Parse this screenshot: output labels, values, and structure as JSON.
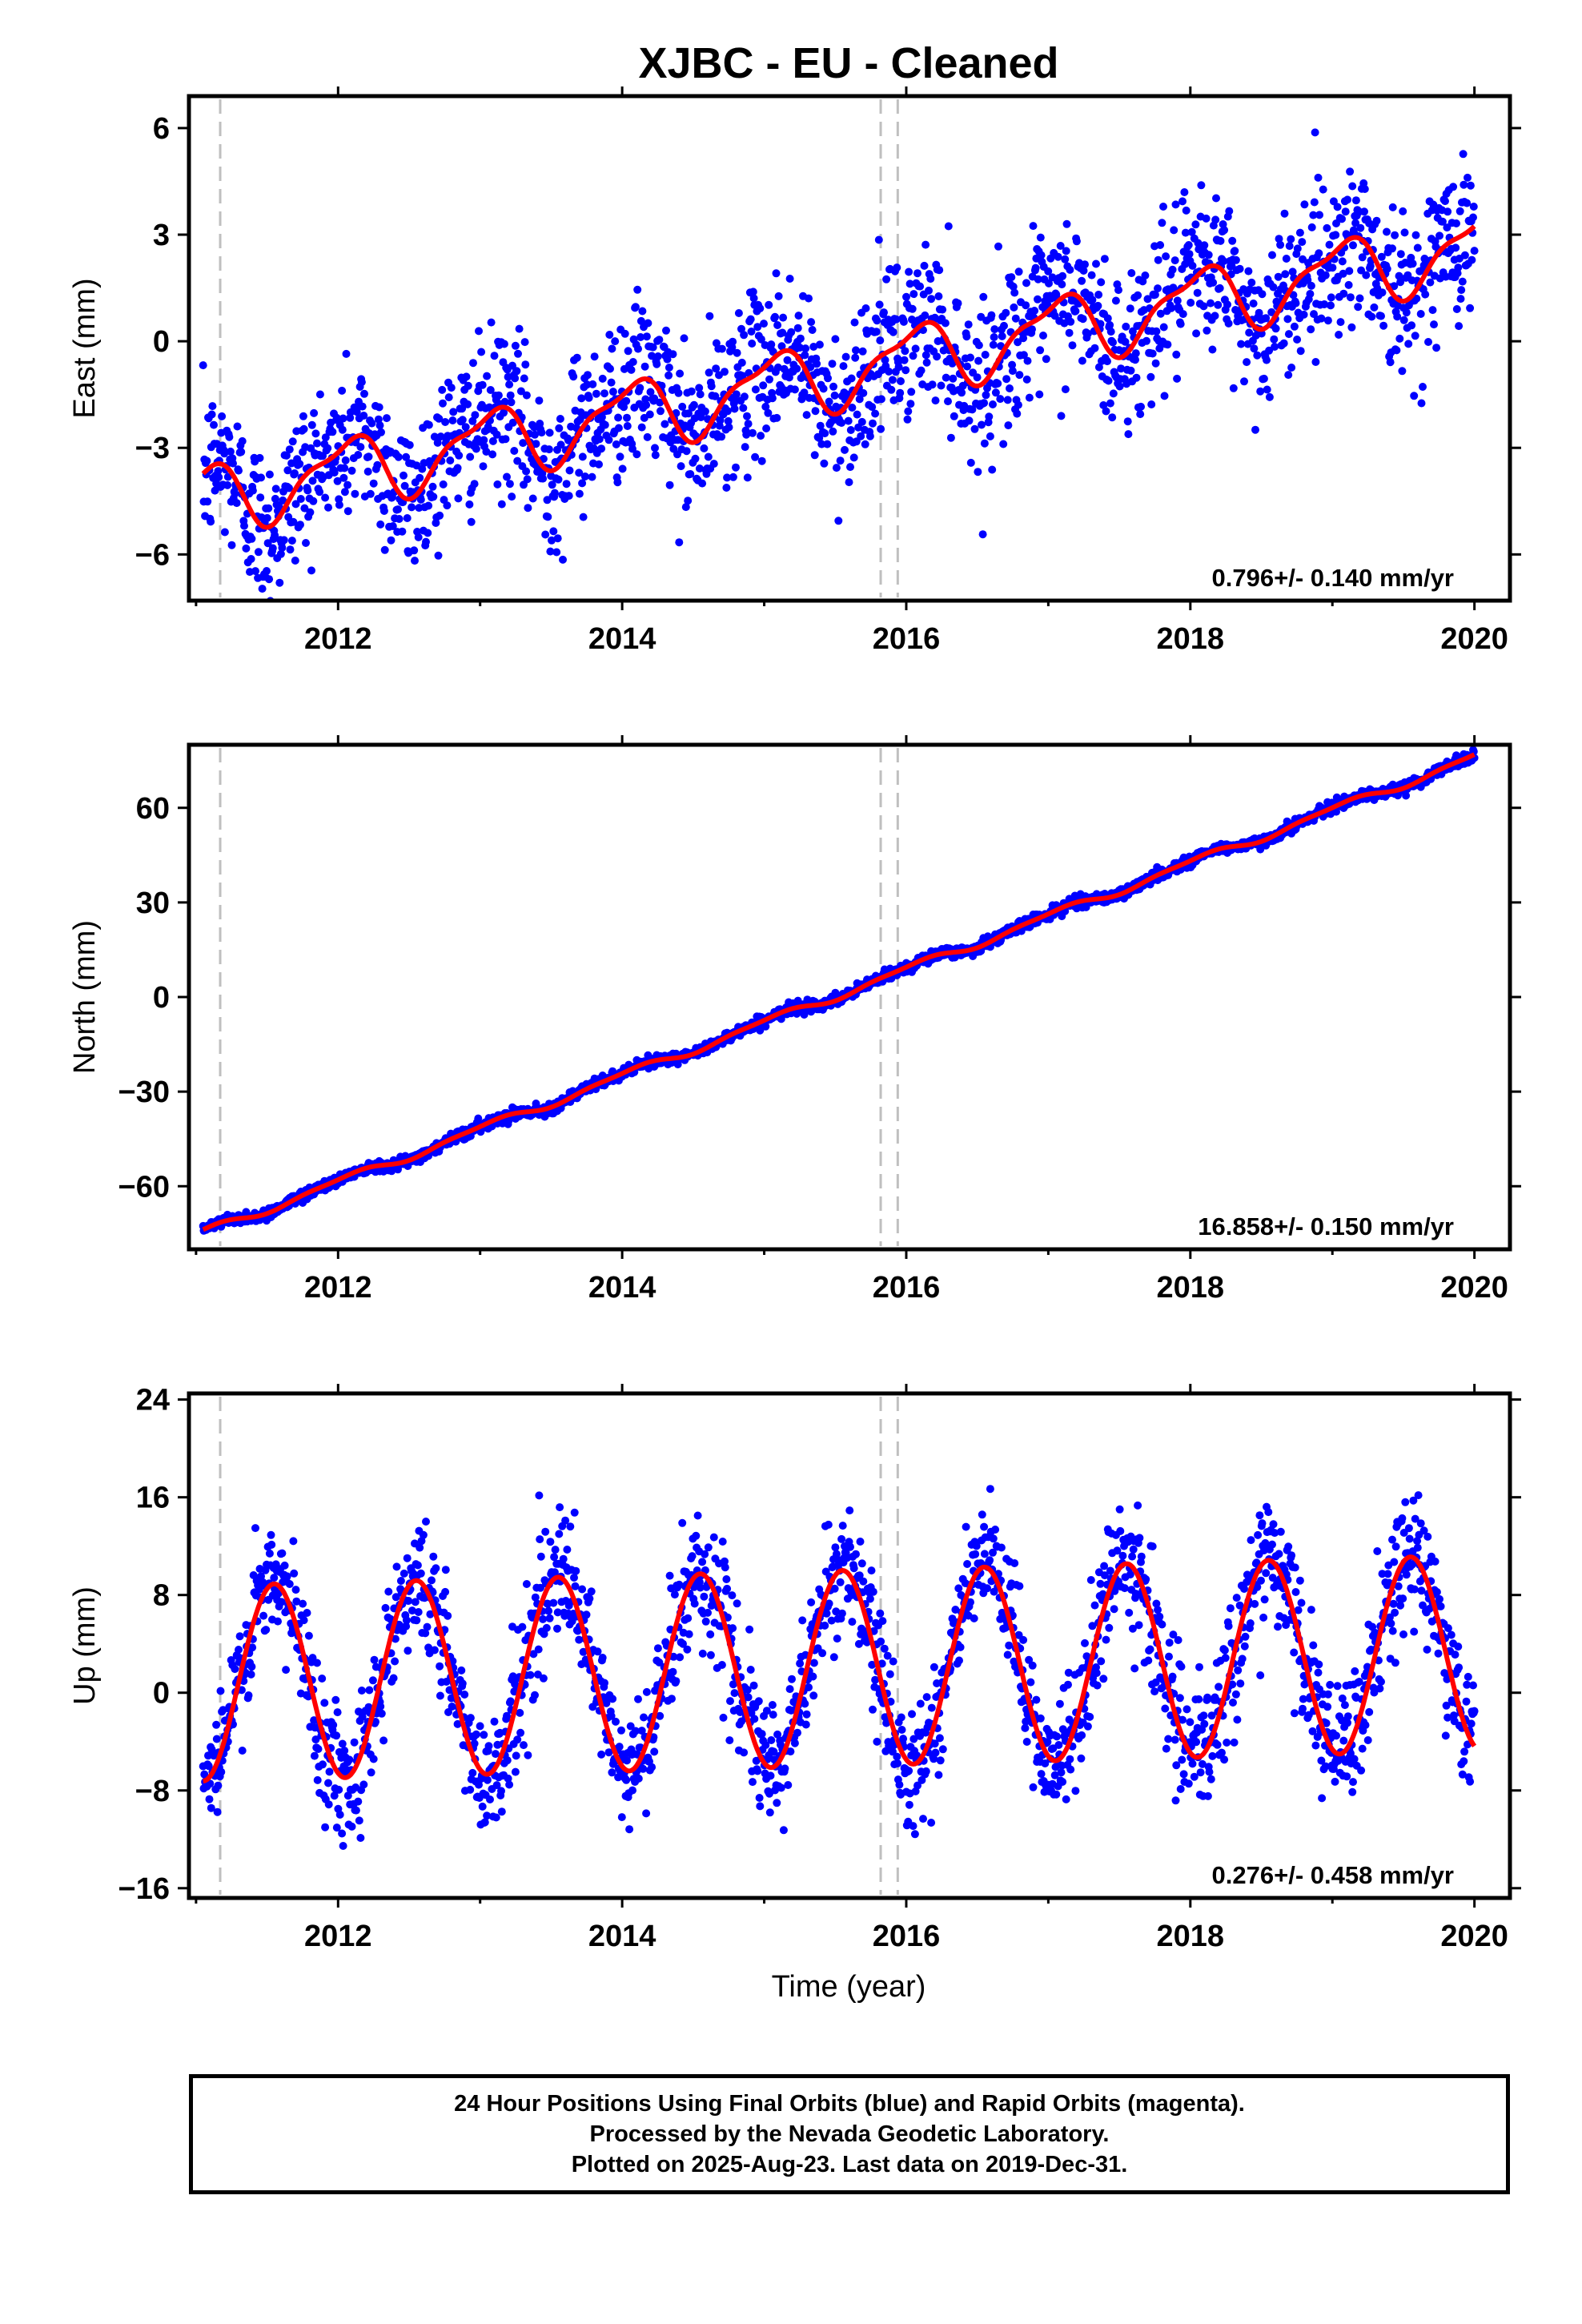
{
  "title": "XJBC  - EU - Cleaned",
  "xlabel": "Time (year)",
  "colors": {
    "points": "#0000ff",
    "fit": "#ff0000",
    "breaks": "#bfbfbf",
    "frame": "#000000"
  },
  "chart_data": [
    {
      "type": "scatter",
      "component": "east",
      "ylabel": "East (mm)",
      "rate_label": "0.796+/- 0.140 mm/yr",
      "xlim": [
        2010.95,
        2020.25
      ],
      "ylim": [
        -7.3,
        6.9
      ],
      "xticks": [
        2012,
        2014,
        2016,
        2018,
        2020
      ],
      "xtick_labels": [
        "2012",
        "2014",
        "2016",
        "2018",
        "2020"
      ],
      "yticks": [
        -6,
        -3,
        0,
        3,
        6
      ],
      "ytick_labels": [
        "−6",
        "−3",
        "0",
        "3",
        "6"
      ],
      "breaks": [
        2011.17,
        2015.82,
        2015.94
      ],
      "data_range": [
        2011.05,
        2020.0
      ],
      "series": [
        {
          "name": "",
          "trend": {
            "t0": 2015.5,
            "offset": -0.9,
            "rate": 0.796
          },
          "annual_amp": 0.9,
          "noise": 1.1
        }
      ]
    },
    {
      "type": "scatter",
      "component": "north",
      "ylabel": "North (mm)",
      "rate_label": "16.858+/- 0.150 mm/yr",
      "xlim": [
        2010.95,
        2020.25
      ],
      "ylim": [
        -80,
        80
      ],
      "xticks": [
        2012,
        2014,
        2016,
        2018,
        2020
      ],
      "xtick_labels": [
        "2012",
        "2014",
        "2016",
        "2018",
        "2020"
      ],
      "yticks": [
        -60,
        -30,
        0,
        30,
        60
      ],
      "ytick_labels": [
        "−60",
        "−30",
        "0",
        "30",
        "60"
      ],
      "breaks": [
        2011.17,
        2015.82,
        2015.94
      ],
      "data_range": [
        2011.05,
        2020.0
      ],
      "series": [
        {
          "name": "",
          "trend": {
            "t0": 2015.5,
            "offset": 0.3,
            "rate": 16.858
          },
          "annual_amp": 1.2,
          "noise": 0.9
        }
      ]
    },
    {
      "type": "scatter",
      "component": "up",
      "ylabel": "Up (mm)",
      "rate_label": "0.276+/- 0.458 mm/yr",
      "xlim": [
        2010.95,
        2020.25
      ],
      "ylim": [
        -16.8,
        24.5
      ],
      "xticks": [
        2012,
        2014,
        2016,
        2018,
        2020
      ],
      "xtick_labels": [
        "2012",
        "2014",
        "2016",
        "2018",
        "2020"
      ],
      "yticks": [
        -16,
        -8,
        0,
        8,
        16,
        24
      ],
      "ytick_labels": [
        "−16",
        "−8",
        "0",
        "8",
        "16",
        "24"
      ],
      "breaks": [
        2011.17,
        2015.82,
        2015.94
      ],
      "data_range": [
        2011.05,
        2020.0
      ],
      "series": [
        {
          "name": "",
          "trend": {
            "t0": 2015.5,
            "offset": 2.0,
            "rate": 0.276
          },
          "annual_amp": 8.0,
          "noise": 2.6
        }
      ]
    }
  ],
  "footer": {
    "line1": "24 Hour Positions Using Final Orbits (blue) and Rapid Orbits (magenta).",
    "line2": "Processed by the Nevada Geodetic Laboratory.",
    "line3": "Plotted on 2025-Aug-23. Last data on 2019-Dec-31."
  }
}
